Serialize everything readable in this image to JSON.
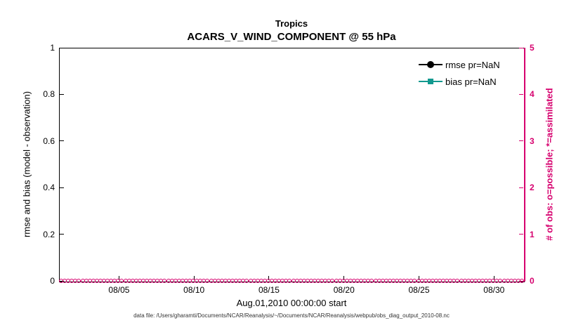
{
  "chart": {
    "title": "Tropics",
    "subtitle": "ACARS_V_WIND_COMPONENT @ 55 hPa",
    "xlabel": "Aug.01,2010 00:00:00 start",
    "ylabel_left": "rmse and bias (model - observation)",
    "ylabel_right": "# of obs: o=possible; *=assimilated",
    "footer": "data file: /Users/gharamti/Documents/NCAR/Reanalysis/~/Documents/NCAR/Reanalysis/webpub/obs_diag_output_2010-08.nc",
    "colors": {
      "rmse": "#000000",
      "bias": "#12998f",
      "obs_axis": "#d6006e"
    },
    "legend": [
      {
        "label": "rmse pr=NaN",
        "marker": "circle",
        "color": "#000000"
      },
      {
        "label": "bias pr=NaN",
        "marker": "square",
        "color": "#12998f"
      }
    ]
  },
  "chart_data": {
    "type": "line",
    "title": "Tropics",
    "subtitle": "ACARS_V_WIND_COMPONENT @ 55 hPa",
    "xlabel": "Aug.01,2010 00:00:00 start",
    "ylabel_left": "rmse and bias (model - observation)",
    "ylabel_right": "# of obs: o=possible; *=assimilated",
    "x_range_days": [
      0,
      31
    ],
    "x_ticks": [
      {
        "label": "08/05",
        "day": 4
      },
      {
        "label": "08/10",
        "day": 9
      },
      {
        "label": "08/15",
        "day": 14
      },
      {
        "label": "08/20",
        "day": 19
      },
      {
        "label": "08/25",
        "day": 24
      },
      {
        "label": "08/30",
        "day": 29
      }
    ],
    "left_axis": {
      "min": 0,
      "max": 1,
      "ticks": [
        "0",
        "0.2",
        "0.4",
        "0.6",
        "0.8",
        "1"
      ],
      "tick_values": [
        0,
        0.2,
        0.4,
        0.6,
        0.8,
        1
      ]
    },
    "right_axis": {
      "min": 0,
      "max": 5,
      "ticks": [
        "0",
        "1",
        "2",
        "3",
        "4",
        "5"
      ],
      "tick_values": [
        0,
        1,
        2,
        3,
        4,
        5
      ]
    },
    "series": [
      {
        "name": "rmse pr=NaN",
        "values": "NaN (no curve plotted)",
        "color": "#000000",
        "marker": "circle"
      },
      {
        "name": "bias pr=NaN",
        "values": "NaN (no curve plotted)",
        "color": "#12998f",
        "marker": "square"
      },
      {
        "name": "# of obs possible (o)",
        "constant_value": 0,
        "color": "#d6006e",
        "marker": "o",
        "axis": "right"
      },
      {
        "name": "# of obs assimilated (*)",
        "constant_value": 0,
        "color": "#d6006e",
        "marker": "*",
        "axis": "right"
      }
    ],
    "obs_marker_count": 130,
    "legend_position": "top-right-inside",
    "grid": false
  },
  "layout_note": ""
}
